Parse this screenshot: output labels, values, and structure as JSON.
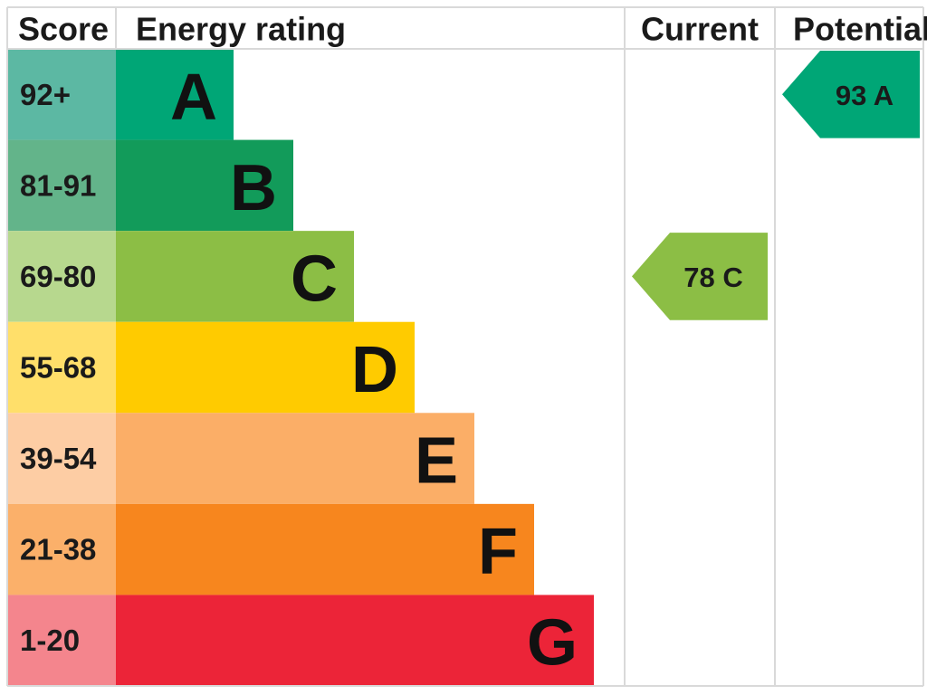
{
  "chart_data": {
    "type": "bar",
    "headers": {
      "score": "Score",
      "energy_rating": "Energy rating",
      "current": "Current",
      "potential": "Potential"
    },
    "bands": [
      {
        "letter": "A",
        "range": "92+",
        "color": "#00A676",
        "score_color": "#5CB8A3"
      },
      {
        "letter": "B",
        "range": "81-91",
        "color": "#129B5A",
        "score_color": "#63B48A"
      },
      {
        "letter": "C",
        "range": "69-80",
        "color": "#8CBE45",
        "score_color": "#B7D88E"
      },
      {
        "letter": "D",
        "range": "55-68",
        "color": "#FFCB00",
        "score_color": "#FFDF6A"
      },
      {
        "letter": "E",
        "range": "39-54",
        "color": "#FBAE67",
        "score_color": "#FDCDA4"
      },
      {
        "letter": "F",
        "range": "21-38",
        "color": "#F7861E",
        "score_color": "#FBB06A"
      },
      {
        "letter": "G",
        "range": "1-20",
        "color": "#EC2438",
        "score_color": "#F4858D"
      }
    ],
    "current": {
      "value": 78,
      "band": "C",
      "color": "#8CBE45"
    },
    "potential": {
      "value": 93,
      "band": "A",
      "color": "#00A676"
    },
    "grid_color": "#D9D9D9"
  }
}
